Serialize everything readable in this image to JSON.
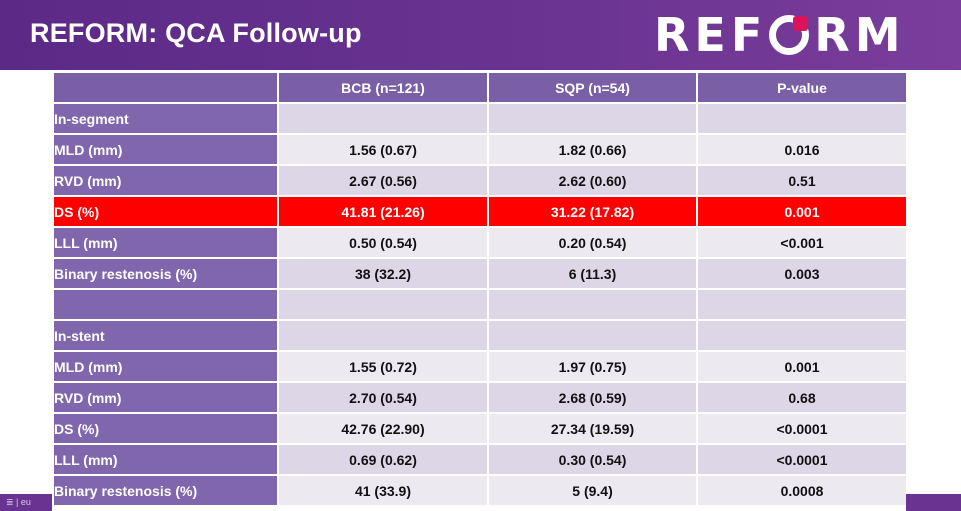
{
  "header": {
    "title": "REFORM: QCA Follow-up",
    "logo_left": "REF",
    "logo_right": "RM"
  },
  "footer": {
    "left_text": "≣ | eu"
  },
  "colors": {
    "header": "#6a3391",
    "highlight": "#ff0000",
    "label_cell": "#8066ad"
  },
  "table": {
    "columns": [
      "BCB  (n=121)",
      "SQP (n=54)",
      "P-value"
    ],
    "in_segment": {
      "label": "In-segment",
      "rows": [
        {
          "label": "MLD (mm)",
          "bcb": "1.56 (0.67)",
          "sqp": "1.82 (0.66)",
          "p": "0.016"
        },
        {
          "label": "RVD (mm)",
          "bcb": "2.67 (0.56)",
          "sqp": "2.62 (0.60)",
          "p": "0.51"
        },
        {
          "label": "DS (%)",
          "bcb": "41.81 (21.26)",
          "sqp": "31.22 (17.82)",
          "p": "0.001"
        },
        {
          "label": "LLL (mm)",
          "bcb": "0.50 (0.54)",
          "sqp": "0.20 (0.54)",
          "p": "<0.001"
        },
        {
          "label": "Binary restenosis (%)",
          "bcb": "38 (32.2)",
          "sqp": "6 (11.3)",
          "p": "0.003"
        }
      ]
    },
    "in_stent": {
      "label": "In-stent",
      "rows": [
        {
          "label": "MLD (mm)",
          "bcb": "1.55 (0.72)",
          "sqp": "1.97 (0.75)",
          "p": "0.001"
        },
        {
          "label": "RVD (mm)",
          "bcb": "2.70 (0.54)",
          "sqp": "2.68 (0.59)",
          "p": "0.68"
        },
        {
          "label": "DS (%)",
          "bcb": "42.76 (22.90)",
          "sqp": "27.34 (19.59)",
          "p": "<0.0001"
        },
        {
          "label": "LLL (mm)",
          "bcb": "0.69 (0.62)",
          "sqp": "0.30 (0.54)",
          "p": "<0.0001"
        },
        {
          "label": "Binary restenosis (%)",
          "bcb": "41 (33.9)",
          "sqp": "5 (9.4)",
          "p": "0.0008"
        }
      ]
    }
  }
}
